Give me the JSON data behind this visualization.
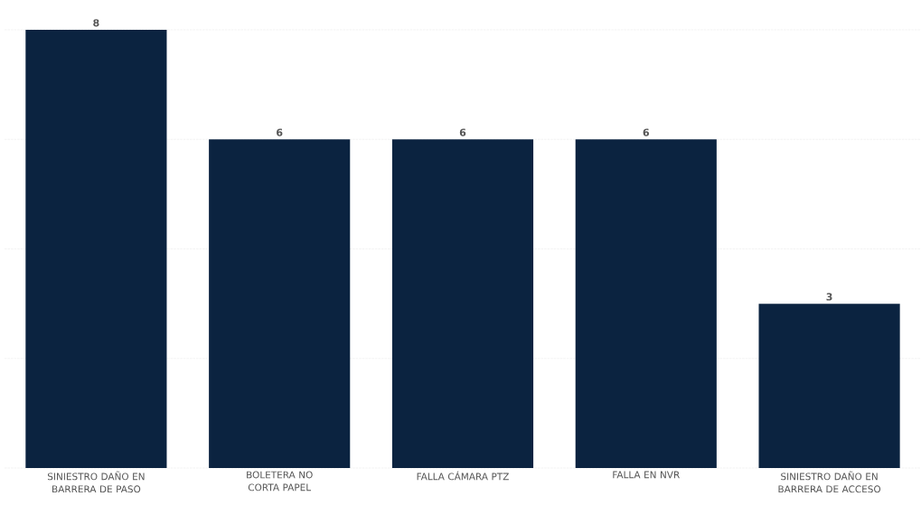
{
  "chart_data": {
    "type": "bar",
    "categories": [
      "SINIESTRO DAÑO EN BARRERA DE PASO",
      "BOLETERA NO CORTA PAPEL",
      "FALLA CÁMARA PTZ",
      "FALLA EN NVR",
      "SINIESTRO DAÑO EN BARRERA DE ACCESO"
    ],
    "values": [
      8,
      6,
      6,
      6,
      3
    ],
    "color": "#0b2340",
    "ylim": [
      0,
      8
    ],
    "yticks": [
      {
        "value": 0,
        "label": null
      },
      {
        "value": 2,
        "label": null
      },
      {
        "value": 4,
        "label": null
      },
      {
        "value": 6,
        "label": null
      },
      {
        "value": 8,
        "label": null
      }
    ],
    "grid": "y",
    "data_labels": true,
    "tick_labels": "x"
  }
}
